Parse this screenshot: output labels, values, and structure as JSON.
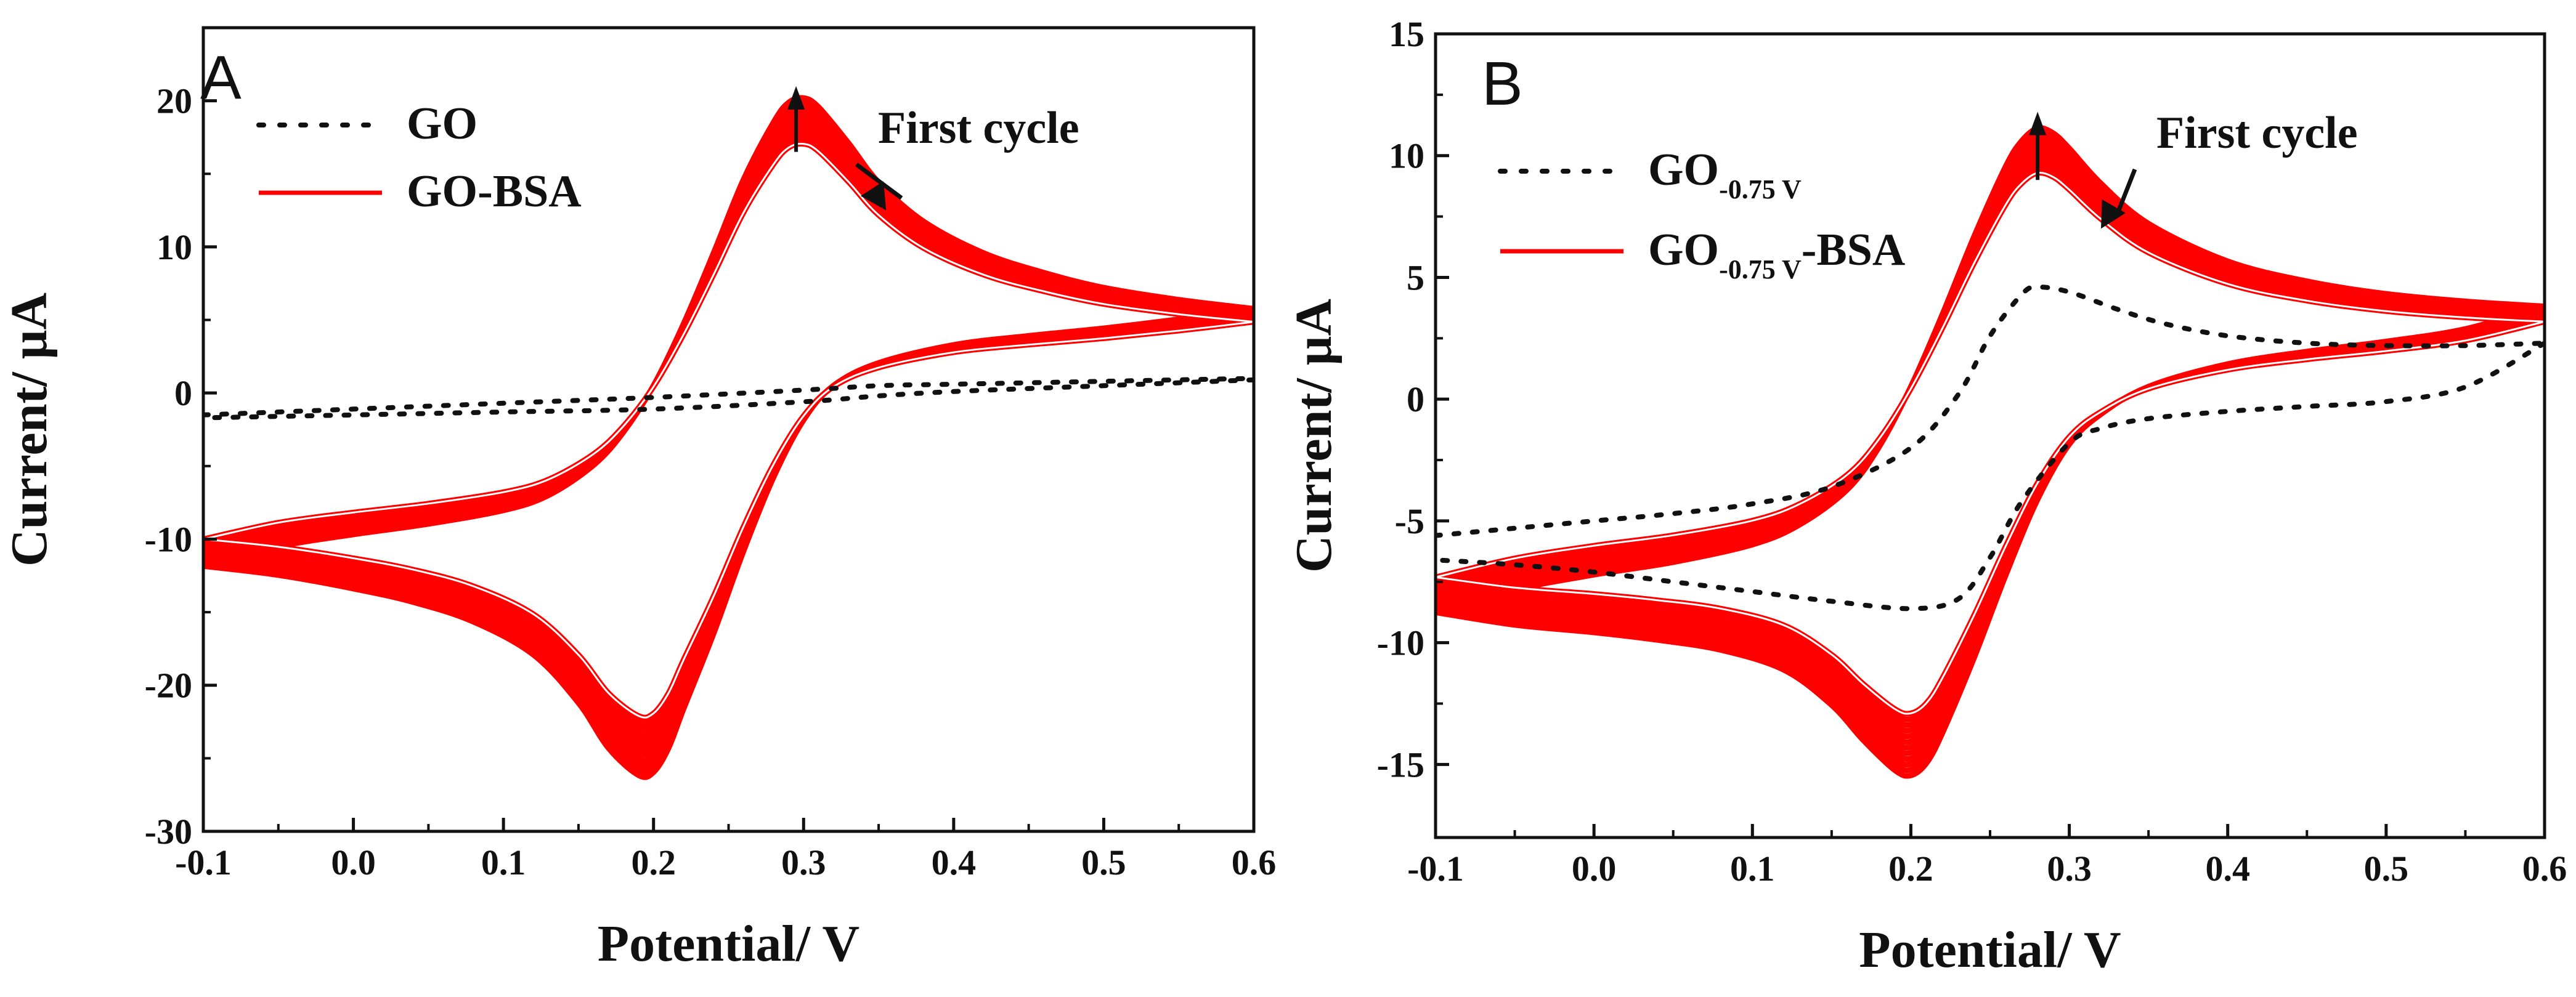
{
  "figure": {
    "colors": {
      "axis": "#111111",
      "go": "#111111",
      "bsa": "#ff0000",
      "background": "#ffffff"
    }
  },
  "chart_data": [
    {
      "type": "line",
      "panel_label": "A",
      "title": "",
      "xlabel": "Potential/ V",
      "ylabel": "Current/ μA",
      "xlim": [
        -0.1,
        0.6
      ],
      "ylim": [
        -30,
        25
      ],
      "x_ticks": [
        -0.1,
        0.0,
        0.1,
        0.2,
        0.3,
        0.4,
        0.5,
        0.6
      ],
      "x_tick_labels": [
        "-0.1",
        "0.0",
        "0.1",
        "0.2",
        "0.3",
        "0.4",
        "0.5",
        "0.6"
      ],
      "y_ticks": [
        -30,
        -20,
        -10,
        0,
        10,
        20
      ],
      "y_tick_labels": [
        "-30",
        "-20",
        "-10",
        "0",
        "10",
        "20"
      ],
      "grid": false,
      "legend_position": "top-left",
      "legend": [
        {
          "name": "GO",
          "subscript": "",
          "suffix": "",
          "style": "dotted",
          "color": "#111111"
        },
        {
          "name": "GO-BSA",
          "subscript": "",
          "suffix": "",
          "style": "solid",
          "color": "#ff0000"
        }
      ],
      "annotation": {
        "text": "First cycle",
        "arrow_to": [
          0.355,
          12.5
        ]
      },
      "peak_arrow": {
        "x": 0.295,
        "from": 16.5,
        "to": 21
      },
      "bsa_cycles": {
        "count": 12,
        "first_cycle_scale": 0.87,
        "last_cycle_scale": 1.03
      },
      "series": [
        {
          "name": "GO-BSA",
          "style": "solid",
          "color": "#ff0000",
          "forward": {
            "x": [
              -0.1,
              -0.05,
              0.0,
              0.05,
              0.1,
              0.13,
              0.16,
              0.18,
              0.2,
              0.22,
              0.24,
              0.26,
              0.28,
              0.29,
              0.3,
              0.31,
              0.33,
              0.35,
              0.38,
              0.42,
              0.46,
              0.5,
              0.55,
              0.6
            ],
            "y": [
              -11.5,
              -10.2,
              -9.4,
              -8.7,
              -7.8,
              -6.8,
              -4.8,
              -2.6,
              0.5,
              4.6,
              9.3,
              14.2,
              18.0,
              19.3,
              19.6,
              19.0,
              16.6,
              14.0,
              11.4,
              9.3,
              8.0,
              7.0,
              6.2,
              5.6
            ]
          },
          "reverse": {
            "x": [
              0.6,
              0.55,
              0.5,
              0.45,
              0.4,
              0.35,
              0.32,
              0.3,
              0.28,
              0.26,
              0.24,
              0.22,
              0.21,
              0.2,
              0.19,
              0.17,
              0.15,
              0.12,
              0.08,
              0.04,
              0.0,
              -0.05,
              -0.1
            ],
            "y": [
              5.6,
              4.9,
              4.3,
              3.8,
              3.2,
              2.0,
              0.5,
              -1.8,
              -5.6,
              -10.5,
              -16.0,
              -21.0,
              -23.6,
              -25.2,
              -25.4,
              -23.6,
              -20.6,
              -17.4,
              -15.2,
              -13.9,
              -13.0,
              -12.1,
              -11.5
            ]
          }
        },
        {
          "name": "GO",
          "style": "dotted",
          "color": "#111111",
          "forward": {
            "x": [
              -0.1,
              0.0,
              0.1,
              0.2,
              0.3,
              0.35,
              0.4,
              0.5,
              0.6
            ],
            "y": [
              -1.5,
              -1.1,
              -0.7,
              -0.3,
              0.2,
              0.5,
              0.6,
              0.8,
              1.0
            ]
          },
          "reverse": {
            "x": [
              0.6,
              0.5,
              0.4,
              0.35,
              0.3,
              0.2,
              0.1,
              0.0,
              -0.1
            ],
            "y": [
              0.9,
              0.5,
              0.1,
              -0.2,
              -0.6,
              -1.1,
              -1.3,
              -1.5,
              -1.7
            ]
          }
        }
      ]
    },
    {
      "type": "line",
      "panel_label": "B",
      "title": "",
      "xlabel": "Potential/ V",
      "ylabel": "Current/ μA",
      "xlim": [
        -0.1,
        0.6
      ],
      "ylim": [
        -18,
        15
      ],
      "x_ticks": [
        -0.1,
        0.0,
        0.1,
        0.2,
        0.3,
        0.4,
        0.5,
        0.6
      ],
      "x_tick_labels": [
        "-0.1",
        "0.0",
        "0.1",
        "0.2",
        "0.3",
        "0.4",
        "0.5",
        "0.6"
      ],
      "y_ticks": [
        -15,
        -10,
        -5,
        0,
        5,
        10,
        15
      ],
      "y_tick_labels": [
        "-15",
        "-10",
        "-5",
        "0",
        "5",
        "10",
        "15"
      ],
      "grid": false,
      "legend_position": "top-left",
      "legend": [
        {
          "name": "GO",
          "subscript": "-0.75 V",
          "suffix": "",
          "style": "dotted",
          "color": "#111111"
        },
        {
          "name": "GO",
          "subscript": "-0.75 V",
          "suffix": "-BSA",
          "style": "solid",
          "color": "#ff0000"
        }
      ],
      "annotation": {
        "text": "First cycle",
        "arrow_to": [
          0.32,
          7.0
        ]
      },
      "peak_arrow": {
        "x": 0.28,
        "from": 9.0,
        "to": 11.8
      },
      "bsa_cycles": {
        "count": 12,
        "first_cycle_scale": 0.86,
        "last_cycle_scale": 1.03
      },
      "series": [
        {
          "name": "GO-0.75 V-BSA",
          "style": "solid",
          "color": "#ff0000",
          "forward": {
            "x": [
              -0.1,
              -0.05,
              0.0,
              0.05,
              0.1,
              0.13,
              0.16,
              0.18,
              0.2,
              0.22,
              0.24,
              0.26,
              0.27,
              0.28,
              0.29,
              0.3,
              0.32,
              0.35,
              0.4,
              0.45,
              0.5,
              0.55,
              0.6
            ],
            "y": [
              -8.5,
              -7.6,
              -7.0,
              -6.5,
              -5.8,
              -5.0,
              -3.6,
              -1.9,
              0.5,
              3.4,
              6.5,
              9.3,
              10.3,
              10.8,
              10.6,
              10.0,
              8.6,
              7.0,
              5.5,
              4.7,
              4.2,
              3.9,
              3.7
            ]
          },
          "reverse": {
            "x": [
              0.6,
              0.55,
              0.5,
              0.45,
              0.4,
              0.35,
              0.32,
              0.3,
              0.28,
              0.26,
              0.24,
              0.22,
              0.21,
              0.2,
              0.19,
              0.17,
              0.15,
              0.12,
              0.08,
              0.04,
              0.0,
              -0.05,
              -0.1
            ],
            "y": [
              3.7,
              2.8,
              2.3,
              1.9,
              1.4,
              0.5,
              -0.6,
              -1.8,
              -4.0,
              -7.0,
              -10.3,
              -13.3,
              -14.5,
              -15.0,
              -14.8,
              -13.6,
              -12.2,
              -10.8,
              -10.0,
              -9.6,
              -9.3,
              -9.0,
              -8.5
            ]
          }
        },
        {
          "name": "GO-0.75 V",
          "style": "dotted",
          "color": "#111111",
          "forward": {
            "x": [
              -0.1,
              -0.05,
              0.0,
              0.05,
              0.1,
              0.15,
              0.2,
              0.23,
              0.25,
              0.27,
              0.28,
              0.3,
              0.33,
              0.36,
              0.4,
              0.45,
              0.5,
              0.55,
              0.6
            ],
            "y": [
              -5.6,
              -5.3,
              -5.0,
              -4.7,
              -4.3,
              -3.6,
              -2.0,
              0.2,
              2.6,
              4.3,
              4.6,
              4.4,
              3.7,
              3.1,
              2.6,
              2.3,
              2.2,
              2.2,
              2.3
            ]
          },
          "reverse": {
            "x": [
              0.6,
              0.55,
              0.5,
              0.45,
              0.4,
              0.35,
              0.32,
              0.3,
              0.27,
              0.25,
              0.23,
              0.2,
              0.15,
              0.1,
              0.05,
              0.0,
              -0.05,
              -0.1
            ],
            "y": [
              2.3,
              0.5,
              -0.1,
              -0.3,
              -0.5,
              -0.8,
              -1.2,
              -1.8,
              -4.2,
              -6.5,
              -8.2,
              -8.6,
              -8.3,
              -7.9,
              -7.5,
              -7.1,
              -6.8,
              -6.6
            ]
          }
        }
      ]
    }
  ]
}
